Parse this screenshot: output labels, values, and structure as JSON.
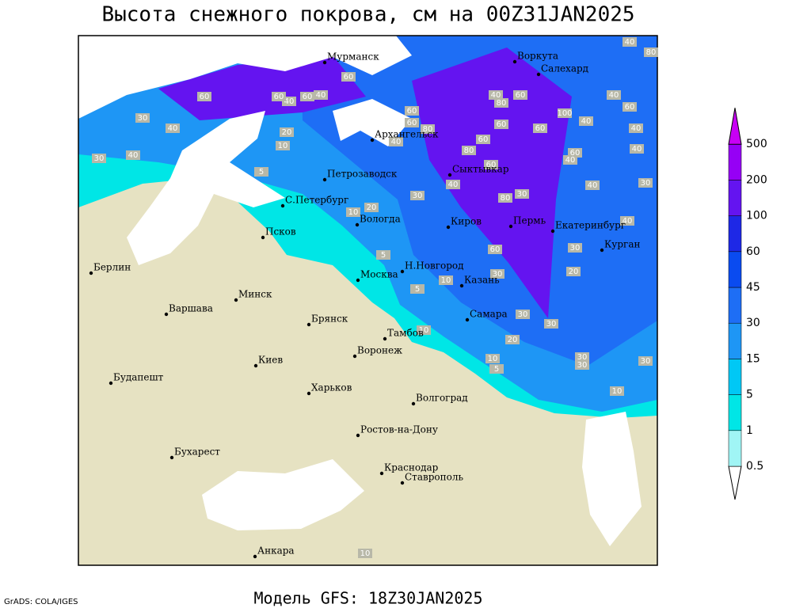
{
  "title": "Высота снежного покрова, см на 00Z31JAN2025",
  "model": "Модель GFS: 18Z30JAN2025",
  "credit": "GrADS: COLA/IGES",
  "cities": [
    "Мурманск",
    "Воркута",
    "Салехард",
    "Архангельск",
    "Петрозаводск",
    "Сыктывкар",
    "С.Петербург",
    "Вологда",
    "Киров",
    "Пермь",
    "Екатеринбург",
    "Курган",
    "Псков",
    "Н.Новгород",
    "Казань",
    "Москва",
    "Берлин",
    "Варшава",
    "Минск",
    "Брянск",
    "Тамбов",
    "Самара",
    "Киев",
    "Воронеж",
    "Будапешт",
    "Харьков",
    "Волгоград",
    "Ростов-на-Дону",
    "Бухарест",
    "Краснодар",
    "Ставрополь",
    "Анкара"
  ],
  "legend": {
    "levels": [
      0.5,
      1,
      5,
      15,
      30,
      45,
      60,
      100,
      200,
      500
    ],
    "colors": [
      "#ffffff",
      "#a0f5f5",
      "#00e6e6",
      "#00c8f5",
      "#1e96f5",
      "#1e6ef5",
      "#0a4bf0",
      "#1e28e6",
      "#6414f0",
      "#9600f5",
      "#c800f5"
    ]
  },
  "contour_labels": [
    60,
    40,
    60,
    60,
    40,
    60,
    30,
    40,
    40,
    30,
    10,
    20,
    5,
    60,
    60,
    80,
    40,
    80,
    60,
    40,
    60,
    80,
    60,
    100,
    40,
    60,
    40,
    60,
    40,
    40,
    40,
    80,
    60,
    40,
    40,
    30,
    60,
    80,
    30,
    40,
    30,
    10,
    20,
    60,
    30,
    20,
    40,
    5,
    5,
    10,
    30,
    30,
    30,
    20,
    10,
    10,
    5,
    30,
    30,
    30,
    10,
    10
  ]
}
